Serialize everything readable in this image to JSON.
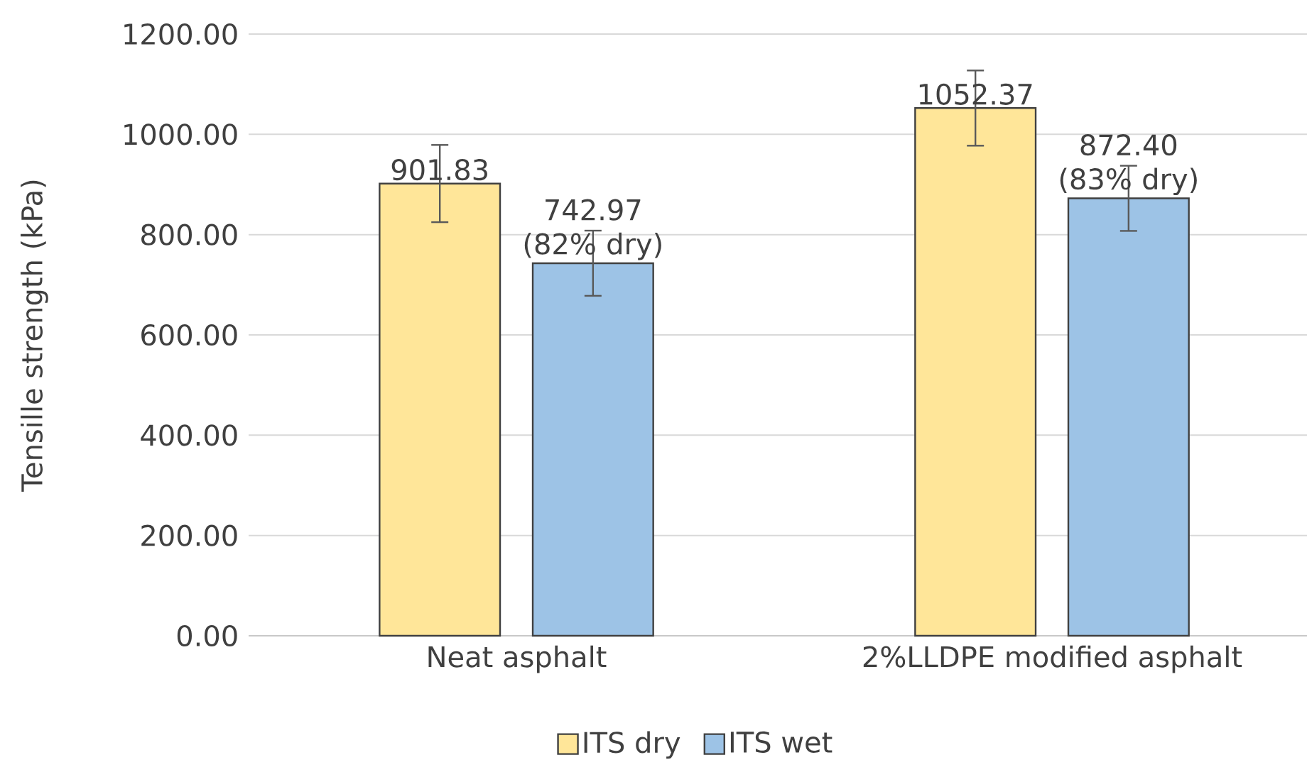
{
  "chart_data": {
    "type": "bar",
    "ylabel": "Tensille strength (kPa)",
    "categories": [
      "Neat asphalt",
      "2%LLDPE modified asphalt"
    ],
    "series": [
      {
        "name": "ITS dry",
        "color": "#ffe699",
        "values": [
          901.83,
          1052.37
        ],
        "errors": [
          77,
          75
        ],
        "value_labels": [
          "901.83",
          "1052.37"
        ]
      },
      {
        "name": "ITS wet",
        "color": "#9dc3e6",
        "values": [
          742.97,
          872.4
        ],
        "errors": [
          65,
          65
        ],
        "value_labels": [
          "742.97 (82% dry)",
          "872.40 (83% dry)"
        ]
      }
    ],
    "ylim": [
      0,
      1200
    ],
    "yticks": [
      {
        "value": 0,
        "label": "0.00"
      },
      {
        "value": 200,
        "label": "200.00"
      },
      {
        "value": 400,
        "label": "400.00"
      },
      {
        "value": 600,
        "label": "600.00"
      },
      {
        "value": 800,
        "label": "800.00"
      },
      {
        "value": 1000,
        "label": "1000.00"
      },
      {
        "value": 1200,
        "label": "1200.00"
      }
    ],
    "grid": "y",
    "legend": "bottom"
  }
}
